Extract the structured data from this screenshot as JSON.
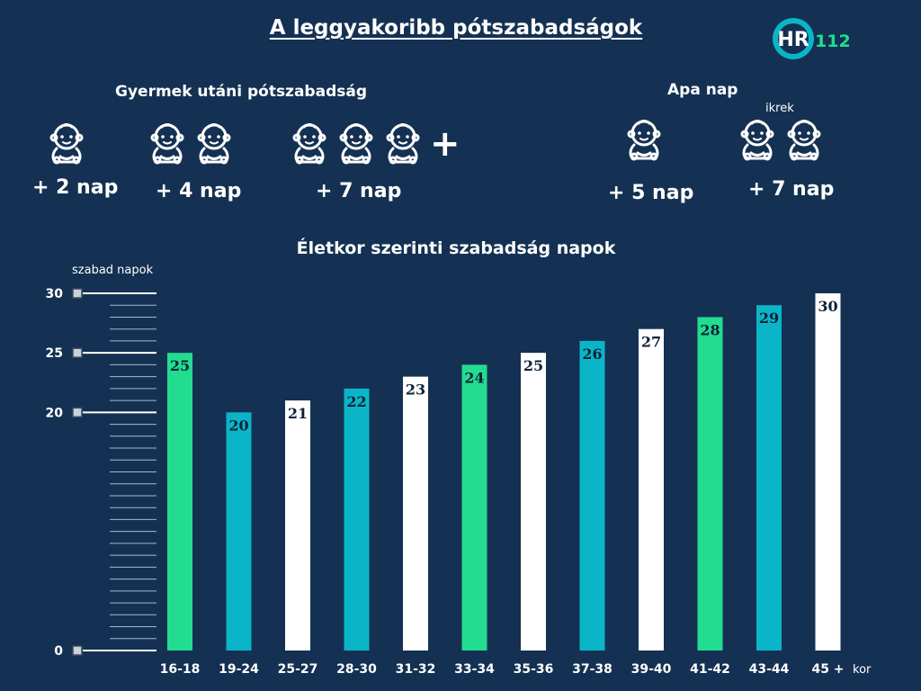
{
  "header": {
    "title": "A leggyakoribb pótszabadságok",
    "logo": {
      "text": "112",
      "mark": "HR"
    }
  },
  "child_leave": {
    "label": "Gyermek utáni pótszabadság",
    "items": [
      {
        "children": 1,
        "days": "+ 2 nap",
        "more": false
      },
      {
        "children": 2,
        "days": "+ 4 nap",
        "more": false
      },
      {
        "children": 3,
        "days": "+ 7 nap",
        "more": true,
        "more_symbol": "+"
      }
    ],
    "icon": "baby-icon"
  },
  "father_leave": {
    "label": "Apa nap",
    "items": [
      {
        "children": 1,
        "days": "+ 5 nap",
        "note": ""
      },
      {
        "children": 2,
        "days": "+ 7 nap",
        "note": "ikrek"
      }
    ]
  },
  "colors": {
    "background": "#143153",
    "green": "#22dd8f",
    "teal": "#0bb5c8",
    "white": "#ffffff",
    "value_text": "#0e2238"
  },
  "chart_data": {
    "type": "bar",
    "title": "Életkor szerinti szabadság napok",
    "ylabel": "szabad napok",
    "xlabel": "kor",
    "ylim": [
      0,
      30
    ],
    "yticks": [
      0,
      20,
      25,
      30
    ],
    "grid": false,
    "categories": [
      "16-18",
      "19-24",
      "25-27",
      "28-30",
      "31-32",
      "33-34",
      "35-36",
      "37-38",
      "39-40",
      "41-42",
      "43-44",
      "45 +"
    ],
    "values": [
      25,
      20,
      21,
      22,
      23,
      24,
      25,
      26,
      27,
      28,
      29,
      30
    ],
    "bar_colors": [
      "green",
      "teal",
      "white",
      "teal",
      "white",
      "green",
      "white",
      "teal",
      "white",
      "green",
      "teal",
      "white"
    ]
  }
}
